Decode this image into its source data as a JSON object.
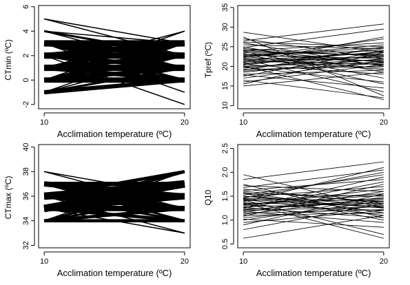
{
  "chart_data": [
    {
      "type": "line",
      "xlabel": "Acclimation temperature (ºC)",
      "ylabel": "CTmin (ºC)",
      "x": [
        10,
        20
      ],
      "xlim": [
        9.6,
        20.4
      ],
      "ylim": [
        -2.35,
        6.1
      ],
      "xticks": [
        "10",
        "20"
      ],
      "yticks": [
        "-2",
        "0",
        "2",
        "4",
        "6"
      ],
      "series": [
        {
          "values": [
            3,
            3
          ],
          "weight": 6
        },
        {
          "values": [
            3,
            2
          ],
          "weight": 5
        },
        {
          "values": [
            3,
            1
          ],
          "weight": 3
        },
        {
          "values": [
            3,
            0
          ],
          "weight": 2
        },
        {
          "values": [
            2,
            3
          ],
          "weight": 5
        },
        {
          "values": [
            2,
            2
          ],
          "weight": 6
        },
        {
          "values": [
            2,
            1
          ],
          "weight": 4
        },
        {
          "values": [
            2,
            0
          ],
          "weight": 2
        },
        {
          "values": [
            1,
            3
          ],
          "weight": 3
        },
        {
          "values": [
            1,
            2
          ],
          "weight": 4
        },
        {
          "values": [
            1,
            1
          ],
          "weight": 6
        },
        {
          "values": [
            1,
            0
          ],
          "weight": 4
        },
        {
          "values": [
            0,
            3
          ],
          "weight": 2
        },
        {
          "values": [
            0,
            2
          ],
          "weight": 3
        },
        {
          "values": [
            0,
            1
          ],
          "weight": 4
        },
        {
          "values": [
            0,
            0
          ],
          "weight": 5
        },
        {
          "values": [
            -1,
            0
          ],
          "weight": 4
        },
        {
          "values": [
            -1,
            1
          ],
          "weight": 2
        },
        {
          "values": [
            -1,
            2
          ],
          "weight": 1
        },
        {
          "values": [
            -1,
            3
          ],
          "weight": 1
        },
        {
          "values": [
            5,
            2
          ],
          "weight": 1
        },
        {
          "values": [
            5,
            3
          ],
          "weight": 1
        },
        {
          "values": [
            4,
            2
          ],
          "weight": 2
        },
        {
          "values": [
            4,
            1
          ],
          "weight": 1
        },
        {
          "values": [
            4,
            3
          ],
          "weight": 1
        },
        {
          "values": [
            2,
            -2
          ],
          "weight": 1
        },
        {
          "values": [
            1,
            4
          ],
          "weight": 1
        },
        {
          "values": [
            0,
            4
          ],
          "weight": 1
        },
        {
          "values": [
            3,
            -1
          ],
          "weight": 1
        }
      ]
    },
    {
      "type": "line",
      "xlabel": "Acclimation temperature (ºC)",
      "ylabel": "Tpref (ºC)",
      "x": [
        10,
        20
      ],
      "xlim": [
        9.6,
        20.4
      ],
      "ylim": [
        9.2,
        35.5
      ],
      "xticks": [
        "10",
        "20"
      ],
      "yticks": [
        "10",
        "15",
        "20",
        "25",
        "30",
        "35"
      ],
      "series": [
        {
          "values": [
            28.7,
            23.5
          ]
        },
        {
          "values": [
            27.5,
            12.5
          ]
        },
        {
          "values": [
            26.5,
            30.8
          ]
        },
        {
          "values": [
            26.0,
            20.0
          ]
        },
        {
          "values": [
            25.5,
            24.5
          ]
        },
        {
          "values": [
            25.0,
            18.5
          ]
        },
        {
          "values": [
            24.8,
            29.5
          ]
        },
        {
          "values": [
            24.5,
            22.5
          ]
        },
        {
          "values": [
            24.2,
            21.0
          ]
        },
        {
          "values": [
            24.0,
            26.0
          ]
        },
        {
          "values": [
            23.8,
            17.0
          ]
        },
        {
          "values": [
            23.5,
            23.0
          ]
        },
        {
          "values": [
            23.3,
            15.5
          ]
        },
        {
          "values": [
            23.0,
            24.0
          ]
        },
        {
          "values": [
            22.8,
            22.0
          ]
        },
        {
          "values": [
            22.5,
            19.5
          ]
        },
        {
          "values": [
            22.3,
            25.5
          ]
        },
        {
          "values": [
            22.0,
            21.5
          ]
        },
        {
          "values": [
            21.8,
            13.5
          ]
        },
        {
          "values": [
            21.5,
            23.5
          ]
        },
        {
          "values": [
            21.3,
            20.5
          ]
        },
        {
          "values": [
            21.0,
            27.5
          ]
        },
        {
          "values": [
            20.8,
            22.5
          ]
        },
        {
          "values": [
            20.5,
            18.0
          ]
        },
        {
          "values": [
            20.3,
            24.5
          ]
        },
        {
          "values": [
            20.0,
            21.0
          ]
        },
        {
          "values": [
            19.8,
            16.0
          ]
        },
        {
          "values": [
            19.5,
            23.0
          ]
        },
        {
          "values": [
            19.2,
            20.0
          ]
        },
        {
          "values": [
            19.0,
            25.0
          ]
        },
        {
          "values": [
            18.5,
            22.0
          ]
        },
        {
          "values": [
            18.0,
            19.0
          ]
        },
        {
          "values": [
            17.5,
            24.0
          ]
        },
        {
          "values": [
            17.0,
            21.5
          ]
        },
        {
          "values": [
            16.5,
            12.0
          ]
        },
        {
          "values": [
            16.0,
            20.5
          ]
        },
        {
          "values": [
            15.5,
            23.5
          ]
        },
        {
          "values": [
            15.0,
            18.5
          ]
        },
        {
          "values": [
            27.0,
            22.0
          ]
        },
        {
          "values": [
            26.2,
            25.0
          ]
        },
        {
          "values": [
            24.6,
            20.2
          ]
        },
        {
          "values": [
            23.9,
            22.8
          ]
        },
        {
          "values": [
            23.1,
            21.2
          ]
        },
        {
          "values": [
            22.6,
            24.8
          ]
        },
        {
          "values": [
            21.9,
            19.2
          ]
        },
        {
          "values": [
            21.2,
            22.4
          ]
        },
        {
          "values": [
            20.6,
            23.8
          ]
        },
        {
          "values": [
            19.9,
            21.8
          ]
        },
        {
          "values": [
            18.8,
            20.8
          ]
        },
        {
          "values": [
            17.8,
            14.5
          ]
        },
        {
          "values": [
            22.2,
            27.0
          ]
        },
        {
          "values": [
            20.1,
            11.5
          ]
        }
      ]
    },
    {
      "type": "line",
      "xlabel": "Acclimation temperature (ºC)",
      "ylabel": "CTmax (ºC)",
      "x": [
        10,
        20
      ],
      "xlim": [
        9.6,
        20.4
      ],
      "ylim": [
        31.8,
        40.2
      ],
      "xticks": [
        "10",
        "20"
      ],
      "yticks": [
        "32",
        "34",
        "36",
        "38",
        "40"
      ],
      "series": [
        {
          "values": [
            35,
            37
          ],
          "weight": 7
        },
        {
          "values": [
            35,
            36
          ],
          "weight": 6
        },
        {
          "values": [
            35,
            35
          ],
          "weight": 5
        },
        {
          "values": [
            35,
            34
          ],
          "weight": 3
        },
        {
          "values": [
            35,
            38
          ],
          "weight": 3
        },
        {
          "values": [
            36,
            37
          ],
          "weight": 7
        },
        {
          "values": [
            36,
            36
          ],
          "weight": 6
        },
        {
          "values": [
            36,
            35
          ],
          "weight": 4
        },
        {
          "values": [
            36,
            34
          ],
          "weight": 2
        },
        {
          "values": [
            36,
            38
          ],
          "weight": 3
        },
        {
          "values": [
            37,
            37
          ],
          "weight": 4
        },
        {
          "values": [
            37,
            36
          ],
          "weight": 5
        },
        {
          "values": [
            37,
            35
          ],
          "weight": 3
        },
        {
          "values": [
            37,
            34
          ],
          "weight": 2
        },
        {
          "values": [
            34,
            35
          ],
          "weight": 3
        },
        {
          "values": [
            34,
            36
          ],
          "weight": 2
        },
        {
          "values": [
            34,
            37
          ],
          "weight": 2
        },
        {
          "values": [
            34,
            34
          ],
          "weight": 3
        },
        {
          "values": [
            38,
            36
          ],
          "weight": 1
        },
        {
          "values": [
            38,
            35
          ],
          "weight": 1
        },
        {
          "values": [
            36,
            33
          ],
          "weight": 1
        },
        {
          "values": [
            35,
            33
          ],
          "weight": 1
        },
        {
          "values": [
            34,
            38
          ],
          "weight": 1
        }
      ]
    },
    {
      "type": "line",
      "xlabel": "Acclimation temperature (ºC)",
      "ylabel": "Q10",
      "x": [
        10,
        20
      ],
      "xlim": [
        9.6,
        20.4
      ],
      "ylim": [
        0.42,
        2.58
      ],
      "xticks": [
        "10",
        "20"
      ],
      "yticks": [
        "0.5",
        "1.0",
        "1.5",
        "2.0",
        "2.5"
      ],
      "series": [
        {
          "values": [
            1.95,
            1.25
          ]
        },
        {
          "values": [
            1.85,
            2.22
          ]
        },
        {
          "values": [
            1.75,
            1.05
          ]
        },
        {
          "values": [
            1.72,
            1.6
          ]
        },
        {
          "values": [
            1.68,
            2.05
          ]
        },
        {
          "values": [
            1.65,
            1.35
          ]
        },
        {
          "values": [
            1.62,
            1.85
          ]
        },
        {
          "values": [
            1.58,
            1.15
          ]
        },
        {
          "values": [
            1.55,
            1.5
          ]
        },
        {
          "values": [
            1.52,
            1.95
          ]
        },
        {
          "values": [
            1.5,
            1.25
          ]
        },
        {
          "values": [
            1.48,
            1.7
          ]
        },
        {
          "values": [
            1.45,
            1.4
          ]
        },
        {
          "values": [
            1.43,
            1.1
          ]
        },
        {
          "values": [
            1.4,
            1.55
          ]
        },
        {
          "values": [
            1.38,
            2.1
          ]
        },
        {
          "values": [
            1.36,
            1.3
          ]
        },
        {
          "values": [
            1.34,
            1.45
          ]
        },
        {
          "values": [
            1.32,
            1.2
          ]
        },
        {
          "values": [
            1.3,
            1.65
          ]
        },
        {
          "values": [
            1.28,
            1.35
          ]
        },
        {
          "values": [
            1.26,
            1.05
          ]
        },
        {
          "values": [
            1.24,
            1.8
          ]
        },
        {
          "values": [
            1.22,
            1.4
          ]
        },
        {
          "values": [
            1.2,
            1.28
          ]
        },
        {
          "values": [
            1.18,
            0.95
          ]
        },
        {
          "values": [
            1.16,
            1.6
          ]
        },
        {
          "values": [
            1.14,
            1.22
          ]
        },
        {
          "values": [
            1.12,
            1.48
          ]
        },
        {
          "values": [
            1.1,
            1.15
          ]
        },
        {
          "values": [
            1.08,
            1.75
          ]
        },
        {
          "values": [
            1.05,
            1.3
          ]
        },
        {
          "values": [
            1.02,
            0.85
          ]
        },
        {
          "values": [
            1.0,
            1.4
          ]
        },
        {
          "values": [
            0.95,
            1.2
          ]
        },
        {
          "values": [
            0.9,
            1.55
          ]
        },
        {
          "values": [
            0.8,
            1.35
          ]
        },
        {
          "values": [
            0.62,
            1.1
          ]
        },
        {
          "values": [
            1.42,
            0.7
          ]
        },
        {
          "values": [
            1.36,
            0.62
          ]
        },
        {
          "values": [
            1.56,
            1.0
          ]
        },
        {
          "values": [
            1.46,
            2.0
          ]
        },
        {
          "values": [
            1.26,
            1.9
          ]
        },
        {
          "values": [
            1.5,
            1.32
          ]
        },
        {
          "values": [
            1.33,
            1.52
          ]
        },
        {
          "values": [
            1.44,
            1.26
          ]
        },
        {
          "values": [
            1.21,
            1.44
          ]
        },
        {
          "values": [
            1.6,
            1.38
          ]
        }
      ]
    }
  ]
}
